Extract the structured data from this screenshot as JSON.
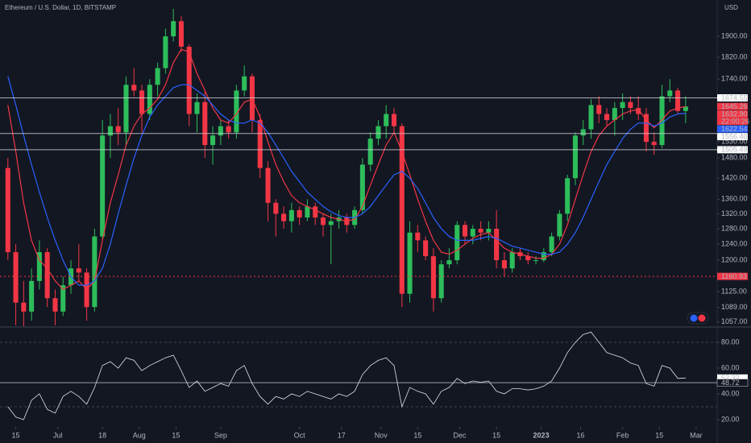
{
  "chart_data": {
    "type": "candlestick",
    "title": "Ethereum / U.S. Dollar, 1D, BITSTAMP",
    "currency": "USD",
    "log_scale": true,
    "grid": false,
    "up_color": "#2dbd5a",
    "down_color": "#f23645",
    "xlim": [
      "2022-06-09",
      "2023-03-09"
    ],
    "xticks": [
      {
        "value": "2022-06-15",
        "label": "15"
      },
      {
        "value": "2022-07-01",
        "label": "Jul"
      },
      {
        "value": "2022-07-18",
        "label": "18"
      },
      {
        "value": "2022-08-01",
        "label": "Aug"
      },
      {
        "value": "2022-08-15",
        "label": "15"
      },
      {
        "value": "2022-09-01",
        "label": "Sep"
      },
      {
        "value": "2022-10-01",
        "label": "Oct"
      },
      {
        "value": "2022-10-17",
        "label": "17"
      },
      {
        "value": "2022-11-01",
        "label": "Nov"
      },
      {
        "value": "2022-11-15",
        "label": "15"
      },
      {
        "value": "2022-12-01",
        "label": "Dec"
      },
      {
        "value": "2022-12-15",
        "label": "15"
      },
      {
        "value": "2023-01-01",
        "label": "2023"
      },
      {
        "value": "2023-01-16",
        "label": "16"
      },
      {
        "value": "2023-02-01",
        "label": "Feb"
      },
      {
        "value": "2023-02-15",
        "label": "15"
      },
      {
        "value": "2023-03-01",
        "label": "Mar"
      }
    ],
    "ylim": [
      1048,
      2047
    ],
    "yticks": [
      {
        "value": 1900,
        "label": "1900.00"
      },
      {
        "value": 1820,
        "label": "1820.00"
      },
      {
        "value": 1740,
        "label": "1740.00"
      },
      {
        "value": 1530,
        "label": "1530.00"
      },
      {
        "value": 1480,
        "label": "1480.00"
      },
      {
        "value": 1420,
        "label": "1420.00"
      },
      {
        "value": 1360,
        "label": "1360.00"
      },
      {
        "value": 1320,
        "label": "1320.00"
      },
      {
        "value": 1280,
        "label": "1280.00"
      },
      {
        "value": 1240,
        "label": "1240.00"
      },
      {
        "value": 1200,
        "label": "1200.00"
      },
      {
        "value": 1125,
        "label": "1125.00"
      },
      {
        "value": 1089,
        "label": "1089.00"
      },
      {
        "value": 1057,
        "label": "1057.00"
      }
    ],
    "categories": [
      "2022-06-12",
      "2022-06-15",
      "2022-06-18",
      "2022-06-21",
      "2022-06-24",
      "2022-06-27",
      "2022-06-30",
      "2022-07-03",
      "2022-07-06",
      "2022-07-09",
      "2022-07-12",
      "2022-07-15",
      "2022-07-18",
      "2022-07-21",
      "2022-07-24",
      "2022-07-27",
      "2022-07-30",
      "2022-08-02",
      "2022-08-05",
      "2022-08-08",
      "2022-08-11",
      "2022-08-14",
      "2022-08-17",
      "2022-08-20",
      "2022-08-23",
      "2022-08-26",
      "2022-08-29",
      "2022-09-01",
      "2022-09-04",
      "2022-09-07",
      "2022-09-10",
      "2022-09-13",
      "2022-09-16",
      "2022-09-19",
      "2022-09-22",
      "2022-09-25",
      "2022-09-28",
      "2022-10-01",
      "2022-10-04",
      "2022-10-07",
      "2022-10-10",
      "2022-10-13",
      "2022-10-16",
      "2022-10-19",
      "2022-10-22",
      "2022-10-25",
      "2022-10-28",
      "2022-10-31",
      "2022-11-03",
      "2022-11-06",
      "2022-11-09",
      "2022-11-12",
      "2022-11-15",
      "2022-11-18",
      "2022-11-21",
      "2022-11-24",
      "2022-11-27",
      "2022-11-30",
      "2022-12-03",
      "2022-12-06",
      "2022-12-09",
      "2022-12-12",
      "2022-12-15",
      "2022-12-18",
      "2022-12-21",
      "2022-12-24",
      "2022-12-27",
      "2022-12-30",
      "2023-01-02",
      "2023-01-05",
      "2023-01-08",
      "2023-01-11",
      "2023-01-14",
      "2023-01-17",
      "2023-01-20",
      "2023-01-23",
      "2023-01-26",
      "2023-01-29",
      "2023-02-01",
      "2023-02-04",
      "2023-02-07",
      "2023-02-10",
      "2023-02-13",
      "2023-02-16",
      "2023-02-19",
      "2023-02-22",
      "2023-02-25"
    ],
    "open": [
      1450,
      1220,
      1100,
      1080,
      1150,
      1220,
      1110,
      1080,
      1140,
      1180,
      1170,
      1090,
      1260,
      1550,
      1580,
      1560,
      1720,
      1700,
      1620,
      1720,
      1780,
      1900,
      1960,
      1860,
      1620,
      1660,
      1520,
      1550,
      1580,
      1560,
      1700,
      1750,
      1600,
      1450,
      1350,
      1320,
      1300,
      1330,
      1310,
      1340,
      1310,
      1290,
      1300,
      1310,
      1290,
      1330,
      1460,
      1540,
      1580,
      1620,
      1580,
      1120,
      1270,
      1250,
      1210,
      1110,
      1190,
      1200,
      1290,
      1260,
      1280,
      1270,
      1280,
      1200,
      1180,
      1220,
      1210,
      1200,
      1200,
      1220,
      1260,
      1320,
      1420,
      1550,
      1570,
      1650,
      1620,
      1600,
      1640,
      1660,
      1640,
      1620,
      1530,
      1520,
      1680,
      1700,
      1630
    ],
    "high": [
      1480,
      1240,
      1150,
      1180,
      1250,
      1230,
      1130,
      1160,
      1200,
      1240,
      1180,
      1280,
      1600,
      1620,
      1640,
      1750,
      1780,
      1720,
      1740,
      1800,
      1930,
      2010,
      1980,
      1870,
      1690,
      1700,
      1580,
      1600,
      1600,
      1720,
      1790,
      1760,
      1620,
      1470,
      1360,
      1340,
      1350,
      1340,
      1360,
      1350,
      1320,
      1320,
      1330,
      1320,
      1340,
      1480,
      1560,
      1600,
      1650,
      1640,
      1590,
      1300,
      1290,
      1260,
      1230,
      1200,
      1230,
      1300,
      1300,
      1290,
      1300,
      1300,
      1330,
      1220,
      1230,
      1230,
      1220,
      1210,
      1230,
      1270,
      1330,
      1430,
      1560,
      1600,
      1670,
      1680,
      1640,
      1660,
      1690,
      1680,
      1680,
      1640,
      1560,
      1720,
      1740,
      1710,
      1680
    ],
    "low": [
      1200,
      1050,
      1048,
      1060,
      1130,
      1090,
      1050,
      1070,
      1120,
      1150,
      1060,
      1080,
      1250,
      1480,
      1520,
      1520,
      1680,
      1560,
      1600,
      1680,
      1760,
      1880,
      1840,
      1580,
      1560,
      1480,
      1460,
      1520,
      1540,
      1540,
      1680,
      1560,
      1420,
      1300,
      1260,
      1280,
      1270,
      1290,
      1300,
      1290,
      1260,
      1190,
      1280,
      1270,
      1280,
      1320,
      1440,
      1520,
      1540,
      1560,
      1090,
      1100,
      1220,
      1200,
      1080,
      1100,
      1180,
      1190,
      1240,
      1240,
      1250,
      1250,
      1180,
      1160,
      1170,
      1200,
      1190,
      1190,
      1195,
      1210,
      1250,
      1300,
      1400,
      1520,
      1540,
      1590,
      1580,
      1550,
      1600,
      1620,
      1600,
      1500,
      1490,
      1510,
      1660,
      1620,
      1590
    ],
    "close": [
      1220,
      1100,
      1080,
      1150,
      1220,
      1110,
      1080,
      1140,
      1180,
      1170,
      1090,
      1260,
      1550,
      1580,
      1560,
      1720,
      1700,
      1620,
      1720,
      1780,
      1900,
      1960,
      1860,
      1620,
      1660,
      1520,
      1550,
      1580,
      1560,
      1700,
      1750,
      1600,
      1450,
      1350,
      1320,
      1300,
      1330,
      1310,
      1340,
      1310,
      1290,
      1300,
      1310,
      1290,
      1330,
      1460,
      1540,
      1580,
      1620,
      1580,
      1120,
      1270,
      1250,
      1210,
      1110,
      1190,
      1200,
      1290,
      1260,
      1280,
      1270,
      1280,
      1200,
      1180,
      1220,
      1210,
      1200,
      1200,
      1220,
      1260,
      1320,
      1420,
      1550,
      1570,
      1650,
      1620,
      1600,
      1640,
      1660,
      1640,
      1620,
      1530,
      1520,
      1680,
      1700,
      1630,
      1645.26
    ],
    "lines": [
      {
        "color": "#f23645",
        "values": [
          1650,
          1500,
          1350,
          1250,
          1200,
          1180,
          1150,
          1130,
          1140,
          1150,
          1130,
          1150,
          1250,
          1350,
          1430,
          1520,
          1580,
          1620,
          1640,
          1670,
          1720,
          1800,
          1850,
          1840,
          1760,
          1700,
          1640,
          1600,
          1590,
          1620,
          1660,
          1670,
          1610,
          1530,
          1460,
          1410,
          1370,
          1350,
          1340,
          1330,
          1320,
          1310,
          1305,
          1300,
          1305,
          1340,
          1400,
          1460,
          1520,
          1560,
          1500,
          1430,
          1360,
          1300,
          1250,
          1220,
          1215,
          1225,
          1240,
          1255,
          1265,
          1270,
          1250,
          1230,
          1220,
          1215,
          1210,
          1205,
          1205,
          1215,
          1240,
          1290,
          1360,
          1430,
          1500,
          1550,
          1580,
          1600,
          1620,
          1630,
          1635,
          1600,
          1575,
          1600,
          1630,
          1640,
          1645
        ]
      },
      {
        "color": "#2962ff",
        "values": [
          1750,
          1650,
          1550,
          1460,
          1380,
          1310,
          1250,
          1200,
          1160,
          1140,
          1140,
          1150,
          1180,
          1240,
          1320,
          1400,
          1480,
          1550,
          1610,
          1650,
          1680,
          1710,
          1720,
          1720,
          1700,
          1680,
          1650,
          1620,
          1600,
          1590,
          1590,
          1600,
          1590,
          1560,
          1520,
          1480,
          1440,
          1410,
          1380,
          1360,
          1340,
          1325,
          1315,
          1310,
          1310,
          1320,
          1340,
          1370,
          1400,
          1430,
          1440,
          1420,
          1390,
          1350,
          1310,
          1280,
          1260,
          1250,
          1250,
          1250,
          1255,
          1260,
          1255,
          1245,
          1235,
          1230,
          1225,
          1220,
          1215,
          1215,
          1220,
          1240,
          1270,
          1310,
          1360,
          1410,
          1460,
          1500,
          1540,
          1570,
          1590,
          1590,
          1580,
          1590,
          1610,
          1620,
          1622.54
        ]
      }
    ],
    "price_labels": [
      {
        "value": 1674.55,
        "bg": "#ffffff",
        "fg": "#131722",
        "line": "solid"
      },
      {
        "value": 1645.26,
        "bg": "#f23645",
        "fg": "#ffffff"
      },
      {
        "value": 1632.9,
        "label": "1632.90",
        "bg": "#f23645",
        "fg": "#ffffff",
        "countdown": "22:00:26"
      },
      {
        "value": 1622.54,
        "bg": "#2962ff",
        "fg": "#ffffff"
      },
      {
        "value": 1556.4,
        "label": "1556.40",
        "bg": "#ffffff",
        "fg": "#131722",
        "line": "solid"
      },
      {
        "value": 1505.49,
        "bg": "#ffffff",
        "fg": "#131722",
        "line": "solid"
      },
      {
        "value": 1160.93,
        "bg": "#f23645",
        "fg": "#ffffff",
        "line": "dotted"
      }
    ],
    "rsi": {
      "color": "#e0e3eb",
      "ylim": [
        14.4,
        91.25
      ],
      "yticks": [
        {
          "value": 80,
          "label": "80.00"
        },
        {
          "value": 60,
          "label": "60.00"
        },
        {
          "value": 40,
          "label": "40.00"
        },
        {
          "value": 20,
          "label": "20.00"
        }
      ],
      "bands": [
        80,
        30
      ],
      "values": [
        30,
        22,
        20,
        35,
        40,
        28,
        25,
        38,
        42,
        38,
        32,
        45,
        62,
        65,
        60,
        68,
        66,
        58,
        62,
        65,
        68,
        70,
        58,
        45,
        50,
        42,
        45,
        48,
        46,
        58,
        62,
        48,
        38,
        32,
        38,
        36,
        40,
        38,
        42,
        40,
        38,
        36,
        40,
        38,
        42,
        55,
        62,
        66,
        68,
        62,
        30,
        45,
        42,
        40,
        32,
        42,
        45,
        52,
        48,
        50,
        49,
        50,
        42,
        40,
        44,
        44,
        43,
        44,
        46,
        50,
        60,
        72,
        80,
        86,
        88,
        80,
        72,
        70,
        68,
        64,
        62,
        48,
        46,
        62,
        60,
        52,
        52.32
      ],
      "labels": [
        {
          "value": 52.32,
          "bg": "#ffffff",
          "fg": "#131722"
        },
        {
          "value": 48.72,
          "bg": "#131722",
          "fg": "#d1d4dc",
          "line": "solid"
        }
      ]
    }
  }
}
